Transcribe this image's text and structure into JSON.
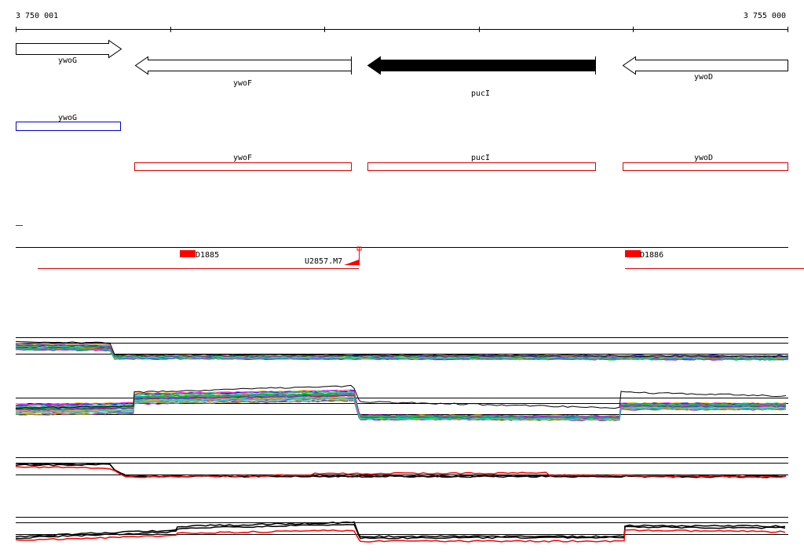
{
  "coordinates": {
    "start_label": "3 750 001",
    "end_label": "3 755 000",
    "start": 3750001,
    "end": 3755000
  },
  "genes": [
    {
      "name": "ywoG",
      "start": 3750001,
      "end": 3750680,
      "strand": "+",
      "highlight": false
    },
    {
      "name": "ywoF",
      "start": 3750770,
      "end": 3752150,
      "strand": "-",
      "highlight": false
    },
    {
      "name": "pucI",
      "start": 3752260,
      "end": 3753735,
      "strand": "-",
      "highlight": true
    },
    {
      "name": "ywoD",
      "start": 3753910,
      "end": 3755000,
      "strand": "-",
      "highlight": false
    }
  ],
  "annotation_boxes": [
    {
      "name": "ywoG",
      "start": 3750001,
      "end": 3750680,
      "color": "#0000cc"
    },
    {
      "name": "ywoF",
      "start": 3750770,
      "end": 3752150,
      "color": "#dd0000"
    },
    {
      "name": "pucI",
      "start": 3752260,
      "end": 3753735,
      "color": "#dd0000"
    },
    {
      "name": "ywoD",
      "start": 3753910,
      "end": 3755000,
      "color": "#dd0000"
    }
  ],
  "features": [
    {
      "name": "D1885",
      "start": 3751055,
      "end": 3751155
    },
    {
      "name": "D1886",
      "start": 3753925,
      "end": 3754025
    }
  ],
  "terminator": {
    "name": "U2857.M7",
    "position": 3752195
  },
  "colors": {
    "accent": "#ff0000",
    "highlight": "#000000",
    "outline": "#000000"
  }
}
